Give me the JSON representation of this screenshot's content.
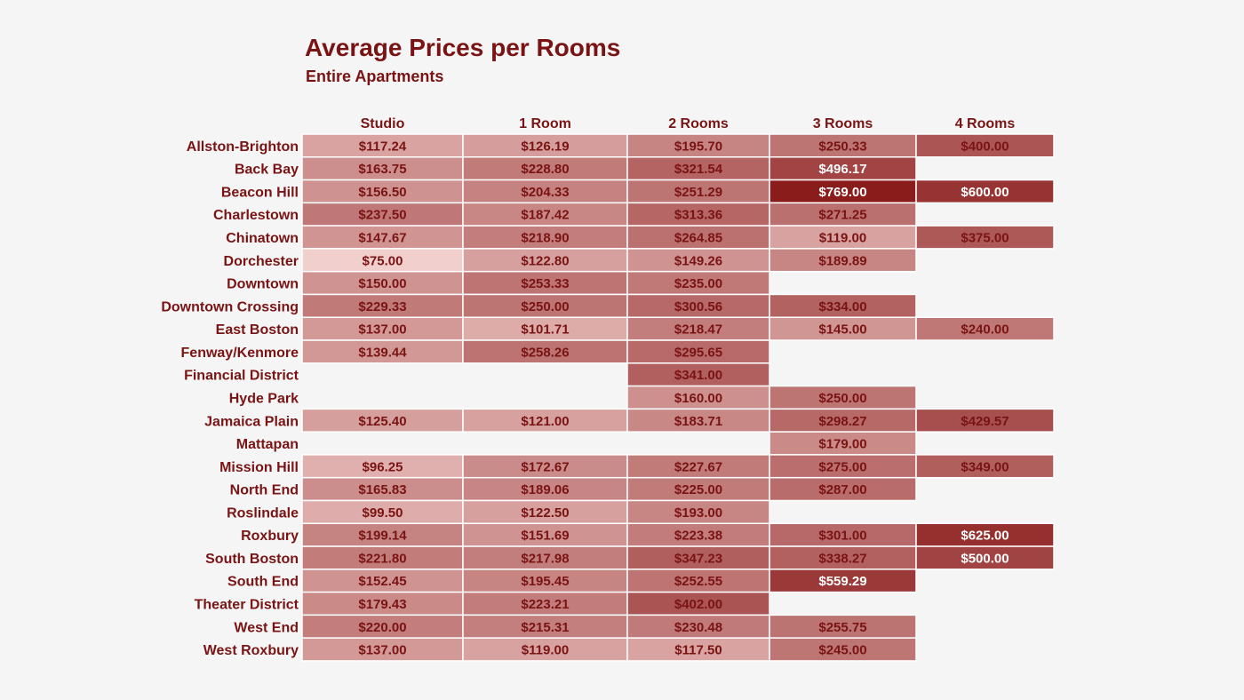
{
  "title": "Average Prices per Rooms",
  "subtitle": "Entire Apartments",
  "colors": {
    "text": "#7a1414",
    "cell_low": "#f1cfcc",
    "cell_high": "#8a1c1c",
    "cell_border": "#ffffff",
    "background": "#f5f5f5"
  },
  "chart_data": {
    "type": "heatmap",
    "columns": [
      "Studio",
      "1 Room",
      "2 Rooms",
      "3 Rooms",
      "4 Rooms"
    ],
    "rows": [
      {
        "label": "Allston-Brighton",
        "values": [
          "$117.24",
          "$126.19",
          "$195.70",
          "$250.33",
          "$400.00"
        ]
      },
      {
        "label": "Back Bay",
        "values": [
          "$163.75",
          "$228.80",
          "$321.54",
          "$496.17",
          null
        ]
      },
      {
        "label": "Beacon Hill",
        "values": [
          "$156.50",
          "$204.33",
          "$251.29",
          "$769.00",
          "$600.00"
        ]
      },
      {
        "label": "Charlestown",
        "values": [
          "$237.50",
          "$187.42",
          "$313.36",
          "$271.25",
          null
        ]
      },
      {
        "label": "Chinatown",
        "values": [
          "$147.67",
          "$218.90",
          "$264.85",
          "$119.00",
          "$375.00"
        ]
      },
      {
        "label": "Dorchester",
        "values": [
          "$75.00",
          "$122.80",
          "$149.26",
          "$189.89",
          null
        ]
      },
      {
        "label": "Downtown",
        "values": [
          "$150.00",
          "$253.33",
          "$235.00",
          null,
          null
        ]
      },
      {
        "label": "Downtown Crossing",
        "values": [
          "$229.33",
          "$250.00",
          "$300.56",
          "$334.00",
          null
        ]
      },
      {
        "label": "East Boston",
        "values": [
          "$137.00",
          "$101.71",
          "$218.47",
          "$145.00",
          "$240.00"
        ]
      },
      {
        "label": "Fenway/Kenmore",
        "values": [
          "$139.44",
          "$258.26",
          "$295.65",
          null,
          null
        ]
      },
      {
        "label": "Financial District",
        "values": [
          null,
          null,
          "$341.00",
          null,
          null
        ]
      },
      {
        "label": "Hyde Park",
        "values": [
          null,
          null,
          "$160.00",
          "$250.00",
          null
        ]
      },
      {
        "label": "Jamaica Plain",
        "values": [
          "$125.40",
          "$121.00",
          "$183.71",
          "$298.27",
          "$429.57"
        ]
      },
      {
        "label": "Mattapan",
        "values": [
          null,
          null,
          null,
          "$179.00",
          null
        ]
      },
      {
        "label": "Mission Hill",
        "values": [
          "$96.25",
          "$172.67",
          "$227.67",
          "$275.00",
          "$349.00"
        ]
      },
      {
        "label": "North End",
        "values": [
          "$165.83",
          "$189.06",
          "$225.00",
          "$287.00",
          null
        ]
      },
      {
        "label": "Roslindale",
        "values": [
          "$99.50",
          "$122.50",
          "$193.00",
          null,
          null
        ]
      },
      {
        "label": "Roxbury",
        "values": [
          "$199.14",
          "$151.69",
          "$223.38",
          "$301.00",
          "$625.00"
        ]
      },
      {
        "label": "South Boston",
        "values": [
          "$221.80",
          "$217.98",
          "$347.23",
          "$338.27",
          "$500.00"
        ]
      },
      {
        "label": "South End",
        "values": [
          "$152.45",
          "$195.45",
          "$252.55",
          "$559.29",
          null
        ]
      },
      {
        "label": "Theater District",
        "values": [
          "$179.43",
          "$223.21",
          "$402.00",
          null,
          null
        ]
      },
      {
        "label": "West End",
        "values": [
          "$220.00",
          "$215.31",
          "$230.48",
          "$255.75",
          null
        ]
      },
      {
        "label": "West Roxbury",
        "values": [
          "$137.00",
          "$119.00",
          "$117.50",
          "$245.00",
          null
        ]
      }
    ]
  }
}
